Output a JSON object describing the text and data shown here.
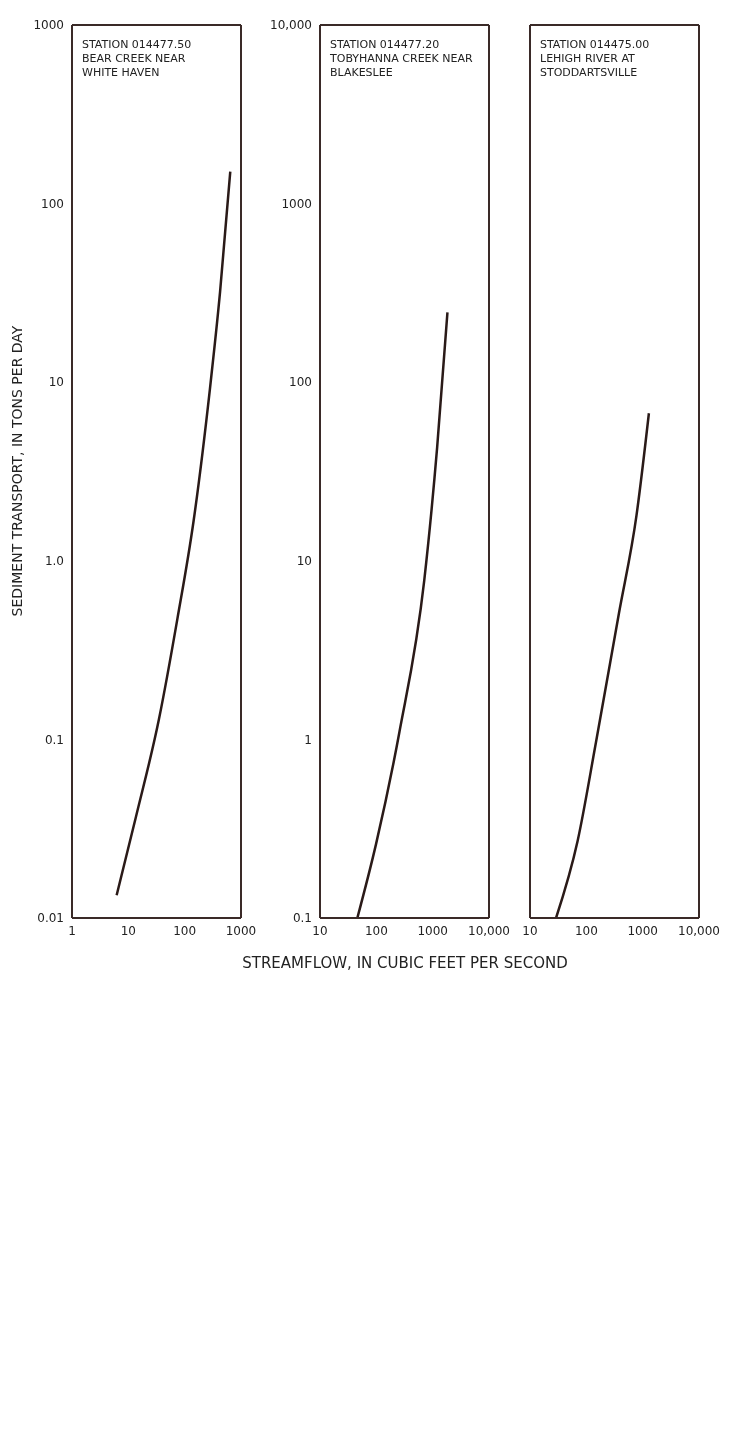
{
  "chart_data": [
    {
      "type": "line",
      "annotations": [
        "STATION 014477.50",
        "BEAR CREEK NEAR",
        "WHITE HAVEN"
      ],
      "ylabel": "SEDIMENT TRANSPORT, IN TONS PER DAY",
      "log": "xy",
      "grid": false,
      "marker": "none",
      "line_style": "solid",
      "xlim": [
        1,
        1000
      ],
      "xticks": [
        1,
        10,
        100,
        1000
      ],
      "ylim": [
        0.01,
        1000
      ],
      "yticks": [
        0.01,
        0.1,
        {
          "value": 1,
          "label": "1.0"
        },
        10,
        100,
        1000
      ],
      "series": [
        {
          "color": "#2a1a18",
          "x": [
            6.2,
            13.7,
            35,
            74,
            144,
            280,
            425,
            645
          ],
          "values": [
            0.0134,
            0.037,
            0.13,
            0.47,
            1.67,
            9.1,
            32,
            151
          ]
        }
      ]
    },
    {
      "type": "line",
      "annotations": [
        "STATION 014477.20",
        "TOBYHANNA CREEK NEAR",
        "BLAKESLEE"
      ],
      "xlabel": "STREAMFLOW, IN CUBIC FEET PER SECOND",
      "log": "xy",
      "grid": false,
      "marker": "none",
      "line_style": "solid",
      "xlim": [
        10,
        10000
      ],
      "xticks": [
        10,
        100,
        1000,
        {
          "value": 10000,
          "label": "10,000"
        }
      ],
      "ylim": [
        0.1,
        10000
      ],
      "yticks": [
        0.1,
        1,
        10,
        100,
        1000,
        {
          "value": 10000,
          "label": "10,000"
        }
      ],
      "series": [
        {
          "color": "#2a1a18",
          "x": [
            46,
            99,
            257,
            710,
            1200,
            1830
          ],
          "values": [
            0.1,
            0.26,
            1.1,
            7.8,
            43,
            246
          ]
        }
      ]
    },
    {
      "type": "line",
      "annotations": [
        "STATION 014475.00",
        "LEHIGH RIVER AT",
        "STODDARTSVILLE"
      ],
      "log": "xy",
      "grid": false,
      "marker": "none",
      "line_style": "solid",
      "tick_labels": "x",
      "xlim": [
        10,
        10000
      ],
      "xticks": [
        10,
        100,
        1000,
        {
          "value": 10000,
          "label": "10,000"
        }
      ],
      "ylim": [
        0.1,
        10000
      ],
      "yticks": [
        0.1,
        1,
        10,
        100,
        1000,
        10000
      ],
      "series": [
        {
          "color": "#2a1a18",
          "x": [
            29,
            70,
            148,
            380,
            776,
            1290
          ],
          "values": [
            0.1,
            0.27,
            0.96,
            5.1,
            17.9,
            67
          ]
        }
      ]
    }
  ]
}
